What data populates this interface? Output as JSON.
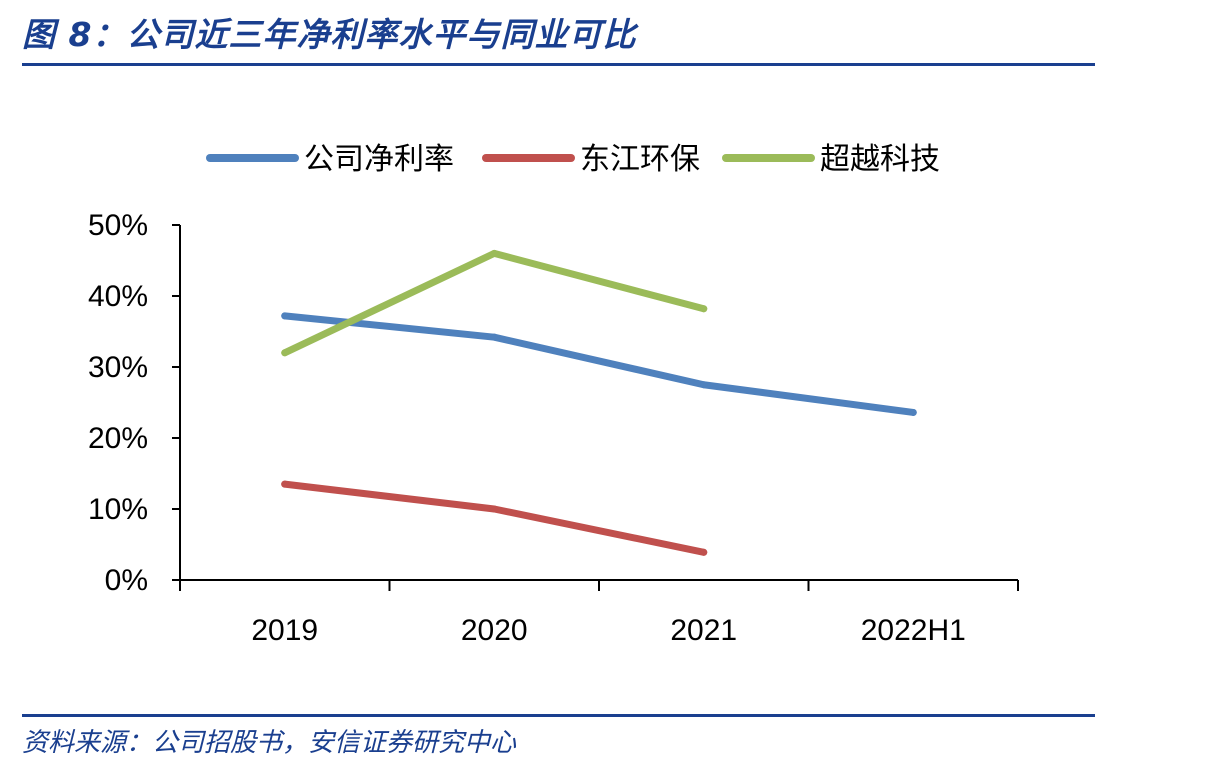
{
  "figure": {
    "title": "图 8：公司近三年净利率水平与同业可比",
    "source": "资料来源：公司招股书，安信证券研究中心"
  },
  "colors": {
    "title": "#1a3f8f",
    "axis": "#000000"
  },
  "chart_data": {
    "type": "line",
    "categories": [
      "2019",
      "2020",
      "2021",
      "2022H1"
    ],
    "ylim": [
      0,
      50
    ],
    "yticks": [
      "0%",
      "10%",
      "20%",
      "30%",
      "40%",
      "50%"
    ],
    "grid": false,
    "legend_position": "top",
    "series": [
      {
        "name": "公司净利率",
        "color": "#4f81bd",
        "values": [
          37.2,
          34.2,
          27.5,
          23.6
        ]
      },
      {
        "name": "东江环保",
        "color": "#c0504d",
        "values": [
          13.5,
          10.0,
          3.9,
          null
        ]
      },
      {
        "name": "超越科技",
        "color": "#9bbb59",
        "values": [
          32.0,
          46.0,
          38.2,
          null
        ]
      }
    ]
  }
}
